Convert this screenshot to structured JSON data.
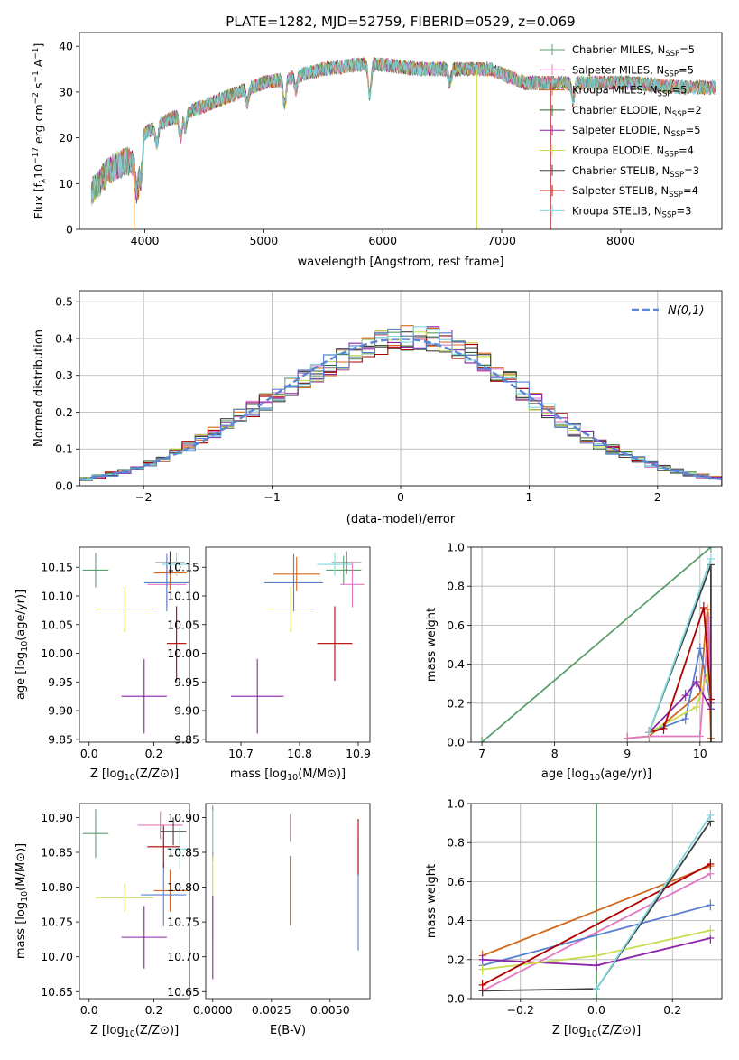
{
  "title": "PLATE=1282, MJD=52759, FIBERID=0529, z=0.069",
  "colors": {
    "chabrier_miles": "#5c9e6c",
    "salpeter_miles": "#e377c2",
    "kroupa_miles": "#d2691e",
    "chabrier_elodie": "#2f5f2f",
    "salpeter_elodie": "#8e24aa",
    "kroupa_elodie": "#c8dc50",
    "chabrier_stelib": "#404040",
    "salpeter_stelib": "#b00000",
    "kroupa_stelib": "#80d8e0",
    "blue": "#5a7fd0",
    "normal_curve": "#5b86d4"
  },
  "chart_data": [
    {
      "id": "spectrum",
      "type": "line",
      "xlabel": "wavelength [Angstrom, rest frame]",
      "ylabel": "Flux [f_λ 10^-17 erg cm^-2 s^-1 A^-1]",
      "xlim": [
        3450,
        8850
      ],
      "ylim": [
        0,
        43
      ],
      "xticks": [
        4000,
        5000,
        6000,
        7000,
        8000
      ],
      "yticks": [
        0,
        10,
        20,
        30,
        40
      ],
      "legend_position": "top-right",
      "legend": [
        {
          "main": "Chabrier MILES, N",
          "sub": "SSP",
          "tail": "=5",
          "color_key": "chabrier_miles"
        },
        {
          "main": "Salpeter MILES, N",
          "sub": "SSP",
          "tail": "=5",
          "color_key": "salpeter_miles"
        },
        {
          "main": "Kroupa MILES, N",
          "sub": "SSP",
          "tail": "=5",
          "color_key": "kroupa_miles"
        },
        {
          "main": "Chabrier ELODIE, N",
          "sub": "SSP",
          "tail": "=2",
          "color_key": "chabrier_elodie"
        },
        {
          "main": "Salpeter ELODIE, N",
          "sub": "SSP",
          "tail": "=5",
          "color_key": "salpeter_elodie"
        },
        {
          "main": "Kroupa ELODIE, N",
          "sub": "SSP",
          "tail": "=4",
          "color_key": "kroupa_elodie"
        },
        {
          "main": "Chabrier STELIB, N",
          "sub": "SSP",
          "tail": "=3",
          "color_key": "chabrier_stelib"
        },
        {
          "main": "Salpeter STELIB, N",
          "sub": "SSP",
          "tail": "=4",
          "color_key": "salpeter_stelib"
        },
        {
          "main": "Kroupa STELIB, N",
          "sub": "SSP",
          "tail": "=3",
          "color_key": "kroupa_stelib"
        }
      ],
      "continuum_x": [
        3550,
        3700,
        3850,
        3950,
        4000,
        4200,
        4500,
        4800,
        5000,
        5200,
        5500,
        5800,
        6000,
        6300,
        6600,
        6900,
        7200,
        7500,
        7800,
        8100,
        8500,
        8800
      ],
      "continuum_y": [
        8,
        13,
        15,
        14,
        21,
        24,
        27,
        30,
        32,
        33,
        35,
        36,
        36,
        35,
        35,
        35,
        32,
        32,
        32,
        32,
        31,
        31
      ]
    },
    {
      "id": "residuals",
      "type": "histogram",
      "xlabel": "(data-model)/error",
      "ylabel": "Normed distribution",
      "xlim": [
        -2.5,
        2.5
      ],
      "ylim": [
        0,
        0.53
      ],
      "xticks": [
        -2,
        -1,
        0,
        1,
        2
      ],
      "yticks": [
        0.0,
        0.1,
        0.2,
        0.3,
        0.4,
        0.5
      ],
      "legend": "N(0,1)",
      "legend_position": "top-right",
      "grid": true,
      "bin_width": 0.1
    },
    {
      "id": "age_vs_Z",
      "type": "errorbar",
      "xlabel": "Z [log10(Z/Z⊙)]",
      "ylabel": "age [log10(age/yr)]",
      "xlim": [
        -0.03,
        0.31
      ],
      "ylim": [
        9.845,
        10.185
      ],
      "xticks": [
        0.0,
        0.2
      ],
      "yticks": [
        9.85,
        9.9,
        9.95,
        10.0,
        10.05,
        10.1,
        10.15
      ],
      "points": [
        {
          "x": 0.02,
          "y": 10.145,
          "xerr": 0.04,
          "yerr": 0.03,
          "c": "chabrier_miles"
        },
        {
          "x": 0.11,
          "y": 10.077,
          "xerr": 0.09,
          "yerr": 0.04,
          "c": "kroupa_elodie"
        },
        {
          "x": 0.17,
          "y": 9.925,
          "xerr": 0.07,
          "yerr": 0.065,
          "c": "salpeter_elodie"
        },
        {
          "x": 0.24,
          "y": 10.12,
          "xerr": 0.06,
          "yerr": 0.04,
          "c": "salpeter_miles"
        },
        {
          "x": 0.25,
          "y": 10.14,
          "xerr": 0.05,
          "yerr": 0.03,
          "c": "kroupa_miles"
        },
        {
          "x": 0.24,
          "y": 10.123,
          "xerr": 0.07,
          "yerr": 0.05,
          "c": "blue"
        },
        {
          "x": 0.25,
          "y": 10.158,
          "xerr": 0.045,
          "yerr": 0.02,
          "c": "chabrier_stelib"
        },
        {
          "x": 0.27,
          "y": 10.155,
          "xerr": 0.045,
          "yerr": 0.02,
          "c": "kroupa_stelib"
        },
        {
          "x": 0.27,
          "y": 10.017,
          "xerr": 0.03,
          "yerr": 0.065,
          "c": "salpeter_stelib"
        }
      ]
    },
    {
      "id": "age_vs_mass",
      "type": "errorbar",
      "xlabel": "mass [log10(M/M⊙)]",
      "ylabel": "",
      "xlim": [
        10.64,
        10.92
      ],
      "ylim": [
        9.845,
        10.185
      ],
      "xticks": [
        10.7,
        10.8,
        10.9
      ],
      "yticks": [
        9.85,
        9.9,
        9.95,
        10.0,
        10.05,
        10.1,
        10.15
      ],
      "points": [
        {
          "x": 10.728,
          "y": 9.925,
          "xerr": 0.045,
          "yerr": 0.065,
          "c": "salpeter_elodie"
        },
        {
          "x": 10.785,
          "y": 10.077,
          "xerr": 0.04,
          "yerr": 0.04,
          "c": "kroupa_elodie"
        },
        {
          "x": 10.79,
          "y": 10.123,
          "xerr": 0.05,
          "yerr": 0.05,
          "c": "blue"
        },
        {
          "x": 10.795,
          "y": 10.138,
          "xerr": 0.04,
          "yerr": 0.03,
          "c": "kroupa_miles"
        },
        {
          "x": 10.86,
          "y": 10.017,
          "xerr": 0.03,
          "yerr": 0.065,
          "c": "salpeter_stelib"
        },
        {
          "x": 10.875,
          "y": 10.145,
          "xerr": 0.03,
          "yerr": 0.025,
          "c": "chabrier_miles"
        },
        {
          "x": 10.88,
          "y": 10.158,
          "xerr": 0.025,
          "yerr": 0.02,
          "c": "chabrier_stelib"
        },
        {
          "x": 10.89,
          "y": 10.12,
          "xerr": 0.02,
          "yerr": 0.04,
          "c": "salpeter_miles"
        },
        {
          "x": 10.86,
          "y": 10.155,
          "xerr": 0.03,
          "yerr": 0.02,
          "c": "kroupa_stelib"
        }
      ]
    },
    {
      "id": "weight_vs_age",
      "type": "line",
      "xlabel": "age [log10(age/yr)]",
      "ylabel": "mass weight",
      "xlim": [
        6.85,
        10.3
      ],
      "ylim": [
        0,
        1.0
      ],
      "xticks": [
        7,
        8,
        9,
        10
      ],
      "yticks": [
        0.0,
        0.2,
        0.4,
        0.6,
        0.8,
        1.0
      ],
      "grid": true,
      "series": [
        {
          "c": "chabrier_miles",
          "x": [
            7.0,
            10.15
          ],
          "y": [
            0.0,
            1.0
          ]
        },
        {
          "c": "kroupa_miles",
          "x": [
            9.0,
            9.3,
            10.0,
            10.1,
            10.15
          ],
          "y": [
            0.02,
            0.03,
            0.25,
            0.68,
            0.02
          ]
        },
        {
          "c": "salpeter_miles",
          "x": [
            9.0,
            9.3,
            10.0,
            10.12,
            10.15
          ],
          "y": [
            0.02,
            0.03,
            0.03,
            0.64,
            0.2
          ]
        },
        {
          "c": "blue",
          "x": [
            9.3,
            9.8,
            10.0,
            10.15
          ],
          "y": [
            0.05,
            0.12,
            0.48,
            0.2
          ]
        },
        {
          "c": "salpeter_elodie",
          "x": [
            9.3,
            9.8,
            9.95,
            10.15
          ],
          "y": [
            0.05,
            0.24,
            0.31,
            0.17
          ]
        },
        {
          "c": "kroupa_elodie",
          "x": [
            9.3,
            9.95,
            10.1,
            10.15
          ],
          "y": [
            0.05,
            0.18,
            0.35,
            0.22
          ]
        },
        {
          "c": "chabrier_stelib",
          "x": [
            9.3,
            10.15,
            10.15
          ],
          "y": [
            0.05,
            0.91,
            0.0
          ]
        },
        {
          "c": "salpeter_stelib",
          "x": [
            9.3,
            9.5,
            10.05,
            10.15
          ],
          "y": [
            0.05,
            0.07,
            0.69,
            0.22
          ]
        },
        {
          "c": "kroupa_stelib",
          "x": [
            9.3,
            10.15
          ],
          "y": [
            0.05,
            0.94
          ]
        }
      ]
    },
    {
      "id": "mass_vs_Z",
      "type": "errorbar",
      "xlabel": "Z [log10(Z/Z⊙)]",
      "ylabel": "mass [log10(M/M⊙)]",
      "xlim": [
        -0.03,
        0.31
      ],
      "ylim": [
        10.64,
        10.92
      ],
      "xticks": [
        0.0,
        0.2
      ],
      "yticks": [
        10.65,
        10.7,
        10.75,
        10.8,
        10.85,
        10.9
      ],
      "points": [
        {
          "x": 0.02,
          "y": 10.877,
          "xerr": 0.04,
          "yerr": 0.035,
          "c": "chabrier_miles"
        },
        {
          "x": 0.11,
          "y": 10.785,
          "xerr": 0.09,
          "yerr": 0.02,
          "c": "kroupa_elodie"
        },
        {
          "x": 0.17,
          "y": 10.728,
          "xerr": 0.07,
          "yerr": 0.045,
          "c": "salpeter_elodie"
        },
        {
          "x": 0.22,
          "y": 10.889,
          "xerr": 0.07,
          "yerr": 0.02,
          "c": "salpeter_miles"
        },
        {
          "x": 0.25,
          "y": 10.795,
          "xerr": 0.05,
          "yerr": 0.03,
          "c": "kroupa_miles"
        },
        {
          "x": 0.23,
          "y": 10.789,
          "xerr": 0.07,
          "yerr": 0.045,
          "c": "blue"
        },
        {
          "x": 0.26,
          "y": 10.88,
          "xerr": 0.04,
          "yerr": 0.02,
          "c": "chabrier_stelib"
        },
        {
          "x": 0.23,
          "y": 10.858,
          "xerr": 0.05,
          "yerr": 0.03,
          "c": "salpeter_stelib"
        },
        {
          "x": 0.28,
          "y": 10.855,
          "xerr": 0.04,
          "yerr": 0.03,
          "c": "kroupa_stelib"
        }
      ]
    },
    {
      "id": "mass_vs_EBV",
      "type": "errorbar",
      "xlabel": "E(B-V)",
      "ylabel": "",
      "xlim": [
        -0.0003,
        0.0067
      ],
      "ylim": [
        10.64,
        10.92
      ],
      "xticks": [
        0.0,
        0.0025,
        0.005
      ],
      "xticklabels": [
        "0.0000",
        "0.0025",
        "0.0050"
      ],
      "yticks": [
        10.65,
        10.7,
        10.75,
        10.8,
        10.85,
        10.9
      ],
      "points": [
        {
          "x": 0.0,
          "y": 10.877,
          "xerr": 0,
          "yerr": 0.04,
          "c": "chabrier_miles"
        },
        {
          "x": 0.0,
          "y": 10.785,
          "xerr": 0,
          "yerr": 0.06,
          "c": "kroupa_elodie"
        },
        {
          "x": 0.0,
          "y": 10.728,
          "xerr": 0,
          "yerr": 0.06,
          "c": "salpeter_elodie"
        },
        {
          "x": 0.0,
          "y": 10.88,
          "xerr": 0,
          "yerr": 0.03,
          "c": "kroupa_stelib"
        },
        {
          "x": 0.0033,
          "y": 10.795,
          "xerr": 0,
          "yerr": 0.05,
          "c": "kroupa_miles"
        },
        {
          "x": 0.0033,
          "y": 10.885,
          "xerr": 0,
          "yerr": 0.02,
          "c": "salpeter_miles"
        },
        {
          "x": 0.0062,
          "y": 10.789,
          "xerr": 0,
          "yerr": 0.08,
          "c": "blue"
        },
        {
          "x": 0.0062,
          "y": 10.858,
          "xerr": 0,
          "yerr": 0.04,
          "c": "salpeter_stelib"
        }
      ]
    },
    {
      "id": "weight_vs_Z",
      "type": "line",
      "xlabel": "Z [log10(Z/Z⊙)]",
      "ylabel": "mass weight",
      "xlim": [
        -0.33,
        0.33
      ],
      "ylim": [
        0,
        1.0
      ],
      "xticks": [
        -0.2,
        0.0,
        0.2
      ],
      "xticklabels": [
        "−0.2",
        "0.0",
        "0.2"
      ],
      "yticks": [
        0.0,
        0.2,
        0.4,
        0.6,
        0.8,
        1.0
      ],
      "grid": true,
      "series": [
        {
          "c": "chabrier_miles",
          "x": [
            0.0,
            0.0
          ],
          "y": [
            0.0,
            1.0
          ]
        },
        {
          "c": "kroupa_miles",
          "x": [
            -0.3,
            0.3
          ],
          "y": [
            0.22,
            0.68
          ]
        },
        {
          "c": "salpeter_miles",
          "x": [
            -0.3,
            0.3
          ],
          "y": [
            0.04,
            0.64
          ]
        },
        {
          "c": "blue",
          "x": [
            -0.3,
            0.3
          ],
          "y": [
            0.17,
            0.48
          ]
        },
        {
          "c": "salpeter_elodie",
          "x": [
            -0.3,
            0.0,
            0.3
          ],
          "y": [
            0.2,
            0.17,
            0.31
          ]
        },
        {
          "c": "kroupa_elodie",
          "x": [
            -0.3,
            0.0,
            0.3
          ],
          "y": [
            0.15,
            0.22,
            0.35
          ]
        },
        {
          "c": "chabrier_stelib",
          "x": [
            -0.3,
            0.0,
            0.3
          ],
          "y": [
            0.04,
            0.05,
            0.91
          ]
        },
        {
          "c": "salpeter_stelib",
          "x": [
            -0.3,
            0.3
          ],
          "y": [
            0.07,
            0.69
          ]
        },
        {
          "c": "kroupa_stelib",
          "x": [
            0.0,
            0.3
          ],
          "y": [
            0.05,
            0.94
          ]
        }
      ]
    }
  ]
}
